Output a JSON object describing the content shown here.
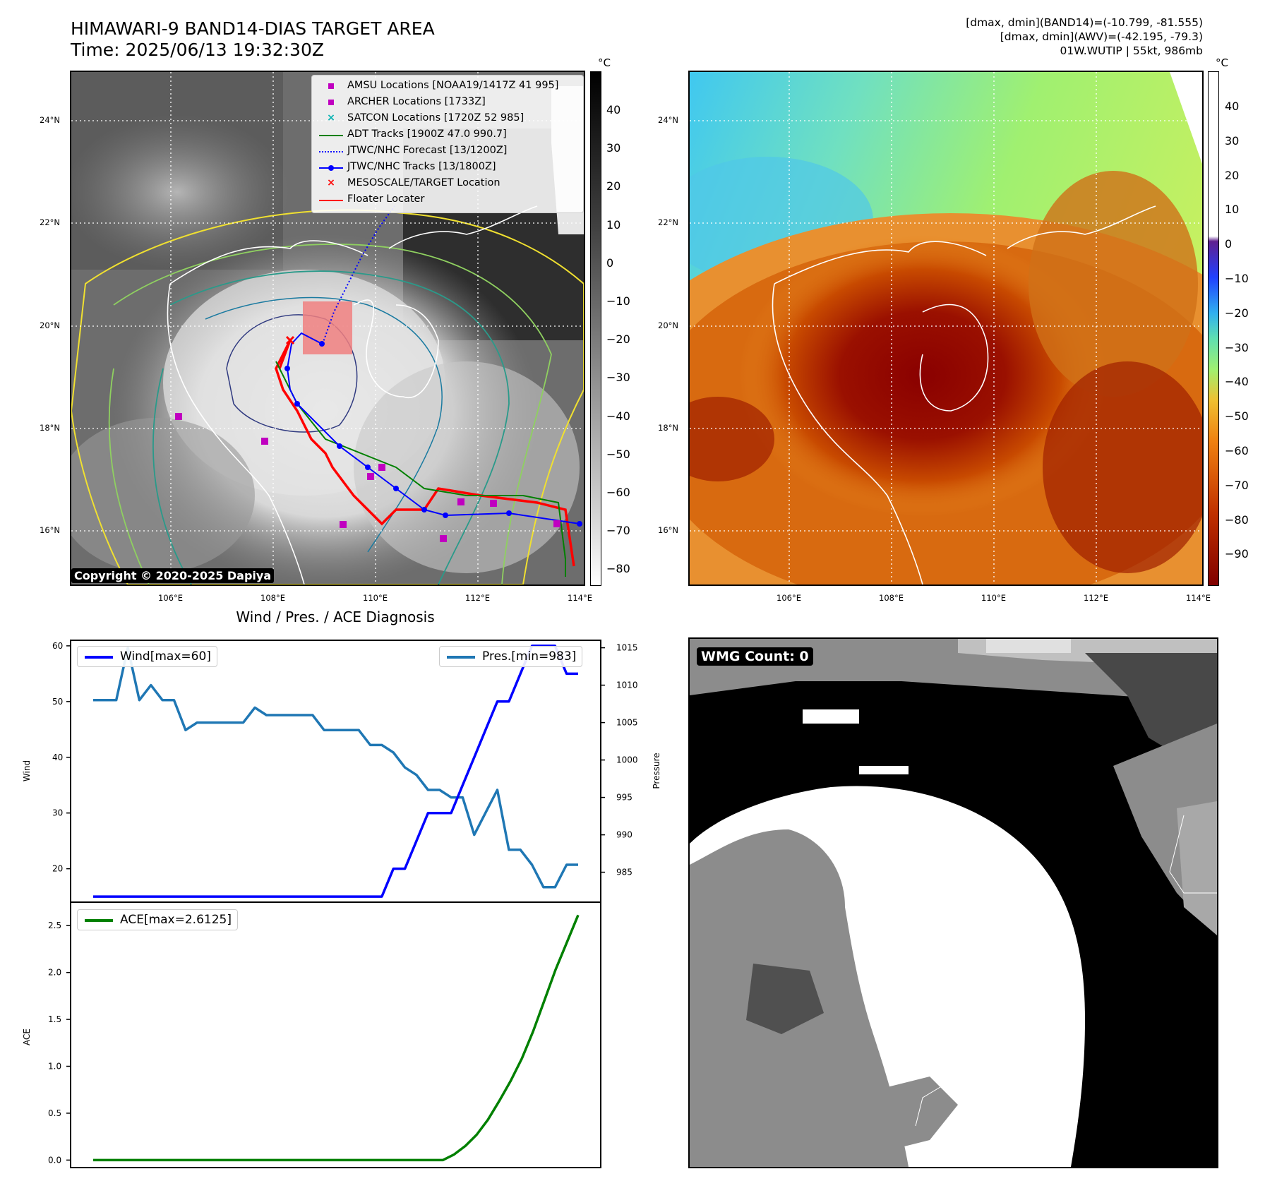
{
  "title_line1": "HIMAWARI-9 BAND14-DIAS TARGET AREA",
  "title_line2": "Time: 2025/06/13 19:32:30Z",
  "info_line1": "[dmax, dmin](BAND14)=(-10.799, -81.555)",
  "info_line2": "[dmax, dmin](AWV)=(-42.195, -79.3)",
  "info_line3": "01W.WUTIP | 55kt, 986mb",
  "map": {
    "lat_labels": [
      "24°N",
      "22°N",
      "20°N",
      "18°N",
      "16°N"
    ],
    "lon_labels": [
      "106°E",
      "108°E",
      "110°E",
      "112°E",
      "114°E"
    ],
    "colorbar_unit": "°C",
    "left_colorbar_ticks": [
      "40",
      "30",
      "20",
      "10",
      "0",
      "−10",
      "−20",
      "−30",
      "−40",
      "−50",
      "−60",
      "−70",
      "−80"
    ],
    "right_colorbar_ticks": [
      "40",
      "30",
      "20",
      "10",
      "0",
      "−10",
      "−20",
      "−30",
      "−40",
      "−50",
      "−60",
      "−70",
      "−80",
      "−90"
    ],
    "copyright": "Copyright © 2020-2025 Dapiya",
    "legend": [
      {
        "label": "AMSU Locations [NOAA19/1417Z 41 995]",
        "symbol": "square",
        "color": "#c000c0"
      },
      {
        "label": "ARCHER Locations [1733Z]",
        "symbol": "square",
        "color": "#c000c0"
      },
      {
        "label": "SATCON Locations [1720Z 52 985]",
        "symbol": "x",
        "color": "#00b0b0"
      },
      {
        "label": "ADT Tracks [1900Z 47.0 990.7]",
        "symbol": "line",
        "color": "#008000"
      },
      {
        "label": "JTWC/NHC Forecast [13/1200Z]",
        "symbol": "dotted",
        "color": "#0000ff"
      },
      {
        "label": "JTWC/NHC Tracks [13/1800Z]",
        "symbol": "line-dot",
        "color": "#0000ff"
      },
      {
        "label": "MESOSCALE/TARGET Location",
        "symbol": "x",
        "color": "#ff0000"
      },
      {
        "label": "Floater Locater",
        "symbol": "line",
        "color": "#ff0000"
      }
    ]
  },
  "wmg_label": "WMG Count: 0",
  "chart_data": [
    {
      "type": "line",
      "title": "Wind / Pres. / ACE Diagnosis",
      "ylabel": "Wind",
      "y2label": "Pressure",
      "ylim": [
        14,
        61
      ],
      "y2lim": [
        981,
        1016
      ],
      "yticks": [
        20,
        30,
        40,
        50,
        60
      ],
      "y2ticks": [
        985,
        990,
        995,
        1000,
        1005,
        1010,
        1015
      ],
      "series": [
        {
          "name": "Wind[max=60]",
          "color": "#0000ff",
          "axis": "left",
          "values": [
            15,
            15,
            15,
            15,
            15,
            15,
            15,
            15,
            15,
            15,
            15,
            15,
            15,
            15,
            15,
            15,
            15,
            15,
            15,
            15,
            15,
            15,
            15,
            15,
            15,
            15,
            20,
            20,
            25,
            30,
            30,
            30,
            35,
            40,
            45,
            50,
            50,
            55,
            60,
            60,
            60,
            55,
            55
          ]
        },
        {
          "name": "Pres.[min=983]",
          "color": "#1f77b4",
          "axis": "right",
          "values": [
            1008,
            1008,
            1008,
            1015,
            1008,
            1010,
            1008,
            1008,
            1004,
            1005,
            1005,
            1005,
            1005,
            1005,
            1007,
            1006,
            1006,
            1006,
            1006,
            1006,
            1004,
            1004,
            1004,
            1004,
            1002,
            1002,
            1001,
            999,
            998,
            996,
            996,
            995,
            995,
            990,
            993,
            996,
            988,
            988,
            986,
            983,
            983,
            986,
            986
          ]
        }
      ]
    },
    {
      "type": "line",
      "ylabel": "ACE",
      "ylim": [
        -0.08,
        2.75
      ],
      "yticks": [
        "0.0",
        "0.5",
        "1.0",
        "1.5",
        "2.0",
        "2.5"
      ],
      "series": [
        {
          "name": "ACE[max=2.6125]",
          "color": "#008000",
          "values": [
            0,
            0,
            0,
            0,
            0,
            0,
            0,
            0,
            0,
            0,
            0,
            0,
            0,
            0,
            0,
            0,
            0,
            0,
            0,
            0,
            0,
            0,
            0,
            0,
            0,
            0,
            0,
            0,
            0,
            0,
            0,
            0,
            0.06,
            0.15,
            0.27,
            0.43,
            0.63,
            0.84,
            1.08,
            1.37,
            1.7,
            2.03,
            2.32,
            2.6125
          ]
        }
      ]
    }
  ]
}
